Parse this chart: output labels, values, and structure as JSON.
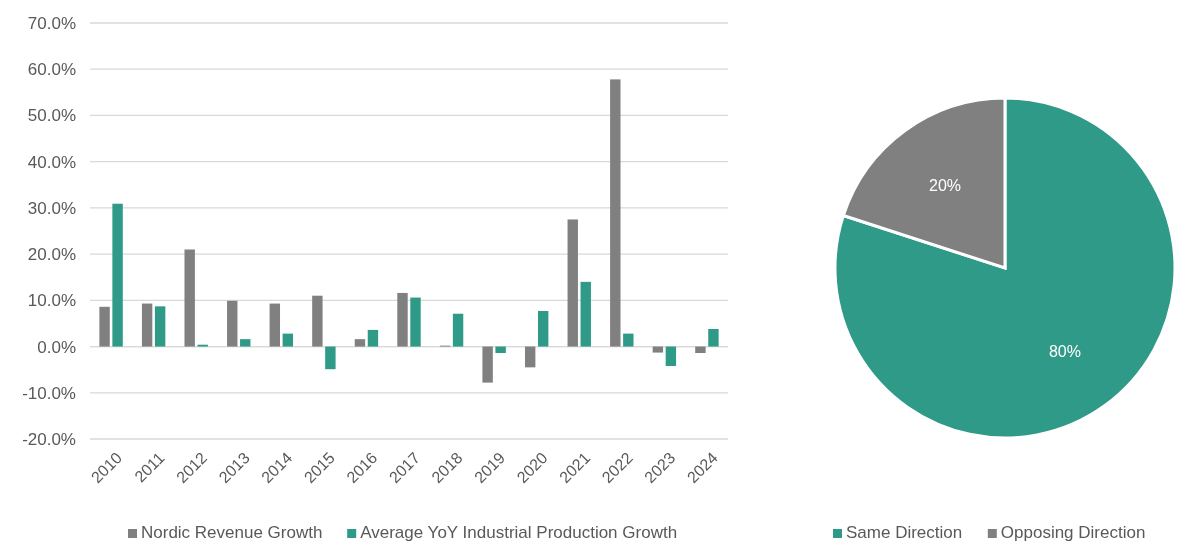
{
  "chart_data": [
    {
      "type": "bar",
      "categories": [
        "2010",
        "2011",
        "2012",
        "2013",
        "2014",
        "2015",
        "2016",
        "2017",
        "2018",
        "2019",
        "2020",
        "2021",
        "2022",
        "2023",
        "2024"
      ],
      "series": [
        {
          "name": "Nordic Revenue Growth",
          "color": "#808080",
          "values": [
            8.6,
            9.3,
            21.0,
            9.9,
            9.3,
            11.0,
            1.6,
            11.6,
            0.2,
            -7.8,
            -4.5,
            27.5,
            57.8,
            -1.3,
            -1.4
          ]
        },
        {
          "name": "Average YoY Industrial Production Growth",
          "color": "#2e9a87",
          "values": [
            30.9,
            8.7,
            0.4,
            1.6,
            2.8,
            -4.9,
            3.6,
            10.6,
            7.1,
            -1.4,
            7.7,
            14.0,
            2.8,
            -4.2,
            3.8
          ]
        }
      ],
      "ylim": [
        -20,
        70
      ],
      "yticks": [
        {
          "value": -20,
          "label": "-20.0%"
        },
        {
          "value": -10,
          "label": "-10.0%"
        },
        {
          "value": 0,
          "label": "0.0%"
        },
        {
          "value": 10,
          "label": "10.0%"
        },
        {
          "value": 20,
          "label": "20.0%"
        },
        {
          "value": 30,
          "label": "30.0%"
        },
        {
          "value": 40,
          "label": "40.0%"
        },
        {
          "value": 50,
          "label": "50.0%"
        },
        {
          "value": 60,
          "label": "60.0%"
        },
        {
          "value": 70,
          "label": "70.0%"
        }
      ],
      "grid": "y",
      "legend": "bottom"
    },
    {
      "type": "pie",
      "categories": [
        "Same Direction",
        "Opposing Direction"
      ],
      "values": [
        80,
        20
      ],
      "colors": [
        "#2e9a87",
        "#808080"
      ],
      "value_labels": [
        "80%",
        "20%"
      ],
      "legend": "bottom"
    }
  ]
}
